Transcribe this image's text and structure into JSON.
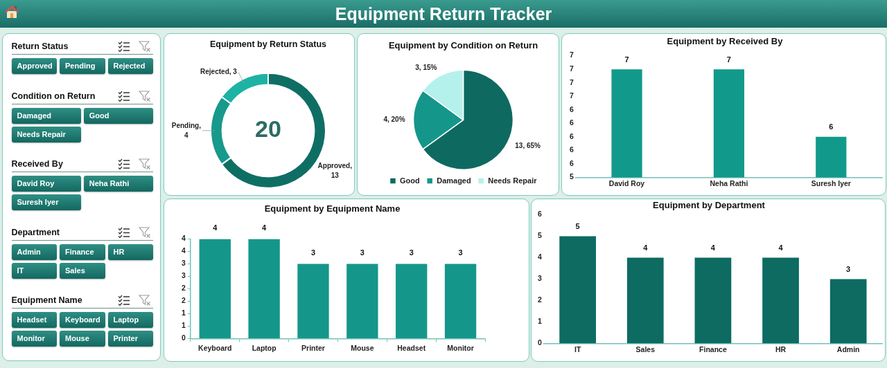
{
  "chart_data": [
    {
      "type": "other",
      "title": "Equipment Return Tracker"
    },
    {
      "type": "other",
      "title": "Return Status",
      "categories": [
        "Approved",
        "Pending",
        "Rejected"
      ]
    },
    {
      "type": "other",
      "title": "Condition on Return",
      "categories": [
        "Damaged",
        "Good",
        "Needs Repair"
      ]
    },
    {
      "type": "other",
      "title": "Received By",
      "categories": [
        "David Roy",
        "Neha Rathi",
        "Suresh Iyer"
      ]
    },
    {
      "type": "other",
      "title": "Department",
      "categories": [
        "Admin",
        "Finance",
        "HR",
        "IT",
        "Sales"
      ]
    },
    {
      "type": "other",
      "title": "Equipment Name",
      "categories": [
        "Headset",
        "Keyboard",
        "Laptop",
        "Monitor",
        "Mouse",
        "Printer"
      ]
    },
    {
      "type": "donut",
      "title": "Equipment by Return Status",
      "categories": [
        null,
        null,
        null
      ],
      "values": [
        13,
        4,
        3
      ],
      "colors": [
        "#0f6e64",
        "#17998c",
        "#1db3a4"
      ],
      "value_labels": [
        "Approved, 13",
        "Pending, 4",
        "Rejected, 3"
      ],
      "annotations": [
        "20"
      ]
    },
    {
      "type": "pie",
      "title": "Equipment by Condition on Return",
      "categories": [
        "Good",
        "Damaged",
        "Needs Repair"
      ],
      "values": [
        13,
        4,
        3
      ],
      "colors": [
        "#0e6a61",
        "#15968a",
        "#b5f1ec"
      ],
      "value_labels": [
        "13, 65%",
        "4, 20%",
        "3, 15%"
      ],
      "legend": "bottom"
    },
    {
      "type": "bar",
      "title": "Equipment by Received By",
      "categories": [
        "David Roy",
        "Neha Rathi",
        "Suresh Iyer"
      ],
      "values": [
        7,
        7,
        6
      ],
      "color": "#119a8b",
      "ylim": [
        5.4,
        7.2
      ],
      "yticks": [
        {
          "value": 5.4,
          "label": "5"
        },
        {
          "value": 5.6,
          "label": "6"
        },
        {
          "value": 5.8,
          "label": "6"
        },
        6,
        {
          "value": 6.2,
          "label": "6"
        },
        {
          "value": 6.4,
          "label": "6"
        },
        {
          "value": 6.6,
          "label": "7"
        },
        {
          "value": 6.8,
          "label": "7"
        },
        7,
        {
          "value": 7.2,
          "label": "7"
        }
      ],
      "data_labels": true
    },
    {
      "type": "bar",
      "title": "Equipment by Equipment Name",
      "categories": [
        "Keyboard",
        "Laptop",
        "Printer",
        "Mouse",
        "Headset",
        "Monitor"
      ],
      "values": [
        4,
        4,
        3,
        3,
        3,
        3
      ],
      "color": "#14978a",
      "ylim": [
        0,
        4
      ],
      "yticks": [
        0,
        {
          "value": 0.5,
          "label": "1"
        },
        1,
        {
          "value": 1.5,
          "label": "2"
        },
        2,
        {
          "value": 2.5,
          "label": "3"
        },
        3,
        {
          "value": 3.5,
          "label": "4"
        },
        4
      ],
      "data_labels": true
    },
    {
      "type": "bar",
      "title": "Equipment by Department",
      "categories": [
        "IT",
        "Sales",
        "Finance",
        "HR",
        "Admin"
      ],
      "values": [
        5,
        4,
        4,
        4,
        3
      ],
      "color": "#0d6b61",
      "ylim": [
        0,
        6
      ],
      "yticks": [
        0,
        1,
        2,
        3,
        4,
        5,
        6
      ],
      "data_labels": true
    }
  ]
}
